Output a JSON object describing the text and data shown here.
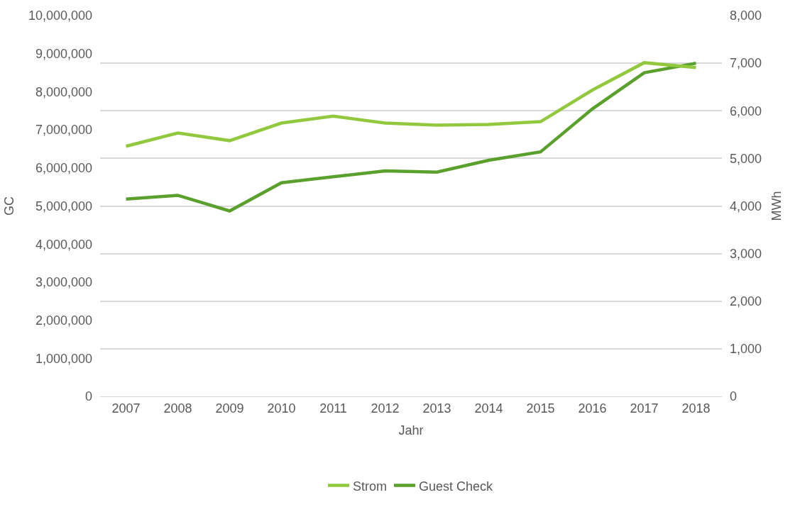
{
  "chart_data": {
    "type": "line",
    "xlabel": "Jahr",
    "ylabel": "GC",
    "y2label": "MWh",
    "categories": [
      "2007",
      "2008",
      "2009",
      "2010",
      "2011",
      "2012",
      "2013",
      "2014",
      "2015",
      "2016",
      "2017",
      "2018"
    ],
    "series": [
      {
        "name": "Strom",
        "color": "#92c83e",
        "axis": "y2",
        "values": [
          5255,
          5535,
          5373,
          5742,
          5889,
          5742,
          5697,
          5712,
          5771,
          6435,
          7011,
          6908
        ]
      },
      {
        "name": "Guest Check",
        "color": "#5aa02c",
        "values": [
          5180000,
          5280000,
          4870000,
          5610000,
          5770000,
          5920000,
          5890000,
          6200000,
          6420000,
          7550000,
          8500000,
          8750000
        ]
      }
    ],
    "ylim": [
      0,
      10000000
    ],
    "yticks": [
      {
        "value": 0,
        "label": "0"
      },
      {
        "value": 1000000,
        "label": "1,000,000"
      },
      {
        "value": 2000000,
        "label": "2,000,000"
      },
      {
        "value": 3000000,
        "label": "3,000,000"
      },
      {
        "value": 4000000,
        "label": "4,000,000"
      },
      {
        "value": 5000000,
        "label": "5,000,000"
      },
      {
        "value": 6000000,
        "label": "6,000,000"
      },
      {
        "value": 7000000,
        "label": "7,000,000"
      },
      {
        "value": 8000000,
        "label": "8,000,000"
      },
      {
        "value": 9000000,
        "label": "9,000,000"
      },
      {
        "value": 10000000,
        "label": "10,000,000"
      }
    ],
    "y2lim": [
      0,
      8000
    ],
    "y2ticks": [
      {
        "value": 0,
        "label": "0"
      },
      {
        "value": 1000,
        "label": "1,000"
      },
      {
        "value": 2000,
        "label": "2,000"
      },
      {
        "value": 3000,
        "label": "3,000"
      },
      {
        "value": 4000,
        "label": "4,000"
      },
      {
        "value": 5000,
        "label": "5,000"
      },
      {
        "value": 6000,
        "label": "6,000"
      },
      {
        "value": 7000,
        "label": "7,000"
      },
      {
        "value": 8000,
        "label": "8,000"
      }
    ],
    "grid": "y2",
    "legend": "bottom",
    "marker": "none",
    "line_style": "solid"
  }
}
